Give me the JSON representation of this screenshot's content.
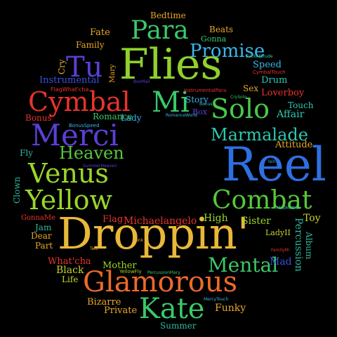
{
  "words": [
    {
      "text": "Droppin'",
      "color": "#e9b83a"
    },
    {
      "text": "Reel",
      "color": "#2f6fe0"
    },
    {
      "text": "Flies",
      "color": "#8fd12c"
    },
    {
      "text": "Glamorous",
      "color": "#ec6a2a"
    },
    {
      "text": "Combat",
      "color": "#57c83a"
    },
    {
      "text": "Yellow",
      "color": "#9bd62a"
    },
    {
      "text": "Venus",
      "color": "#9bd62a"
    },
    {
      "text": "Merci",
      "color": "#5b3fd6"
    },
    {
      "text": "Solo",
      "color": "#48c84a"
    },
    {
      "text": "Kate",
      "color": "#3ac86a"
    },
    {
      "text": "Cymbal",
      "color": "#e8332a"
    },
    {
      "text": "Para",
      "color": "#3ac86a"
    },
    {
      "text": "Mi",
      "color": "#3ac86a"
    },
    {
      "text": "Tu",
      "color": "#5b3fd6"
    },
    {
      "text": "Mental",
      "color": "#3ac86a"
    },
    {
      "text": "Marmalade",
      "color": "#2fc8b0"
    },
    {
      "text": "Promise",
      "color": "#3ab8e8"
    },
    {
      "text": "Heaven",
      "color": "#57c83a"
    },
    {
      "text": "Michaelangelo",
      "color": "#e8332a"
    },
    {
      "text": "Bizarre",
      "color": "#e8a82a"
    },
    {
      "text": "Private",
      "color": "#e8a82a"
    },
    {
      "text": "Funky",
      "color": "#e8a82a"
    },
    {
      "text": "Summer",
      "color": "#2fb8a0"
    },
    {
      "text": "Black",
      "color": "#c8d22a"
    },
    {
      "text": "Life",
      "color": "#c8d22a"
    },
    {
      "text": "What'cha",
      "color": "#e8332a"
    },
    {
      "text": "Mother",
      "color": "#9bd62a"
    },
    {
      "text": "Sister",
      "color": "#9bd62a"
    },
    {
      "text": "High",
      "color": "#9bd62a"
    },
    {
      "text": "Flag",
      "color": "#e8332a"
    },
    {
      "text": "Toy",
      "color": "#c8d22a"
    },
    {
      "text": "Mad",
      "color": "#3a4fe0"
    },
    {
      "text": "Percussion",
      "color": "#2fb8a0"
    },
    {
      "text": "Album",
      "color": "#2fb8a0"
    },
    {
      "text": "Attitude",
      "color": "#e8a82a"
    },
    {
      "text": "Affair",
      "color": "#2fc8b0"
    },
    {
      "text": "Touch",
      "color": "#2fc8b0"
    },
    {
      "text": "Loverboy",
      "color": "#e8332a"
    },
    {
      "text": "Drum",
      "color": "#2fc8b0"
    },
    {
      "text": "Speed",
      "color": "#3ab8e8"
    },
    {
      "text": "Sex",
      "color": "#e8a82a"
    },
    {
      "text": "Story",
      "color": "#3ab8e8"
    },
    {
      "text": "Box",
      "color": "#5b3fd6"
    },
    {
      "text": "Lady",
      "color": "#3ab8e8"
    },
    {
      "text": "Romance",
      "color": "#3ac86a"
    },
    {
      "text": "Bonus",
      "color": "#e8332a"
    },
    {
      "text": "Fly",
      "color": "#2fb8a0"
    },
    {
      "text": "Clown",
      "color": "#2fb8a0"
    },
    {
      "text": "Jam",
      "color": "#2fb8a0"
    },
    {
      "text": "Dear",
      "color": "#e8a82a"
    },
    {
      "text": "Part",
      "color": "#e8a82a"
    },
    {
      "text": "GonnaMe",
      "color": "#e8332a"
    },
    {
      "text": "Instrumental",
      "color": "#3a4fe0"
    },
    {
      "text": "Cry",
      "color": "#e8a82a"
    },
    {
      "text": "Fate",
      "color": "#e8a82a"
    },
    {
      "text": "Family",
      "color": "#e8a82a"
    },
    {
      "text": "Bedtime",
      "color": "#e8a82a"
    },
    {
      "text": "Beats",
      "color": "#e8a82a"
    },
    {
      "text": "Gonna",
      "color": "#3ac86a"
    },
    {
      "text": "Mary",
      "color": "#e8a82a"
    },
    {
      "text": "FlagWhat'cha",
      "color": "#e8332a"
    },
    {
      "text": "LadyII",
      "color": "#c8d22a"
    },
    {
      "text": "InstrumentalPara",
      "color": "#e8332a"
    },
    {
      "text": "CymbalTouch",
      "color": "#e8332a"
    },
    {
      "text": "BackAttitude",
      "color": "#2fc8b0"
    },
    {
      "text": "BonusSpeed",
      "color": "#3ab8e8"
    },
    {
      "text": "BoxMail",
      "color": "#5b3fd6"
    },
    {
      "text": "RomanceWorld",
      "color": "#3ab8e8"
    },
    {
      "text": "SummerHeaven",
      "color": "#5b3fd6"
    },
    {
      "text": "Isin",
      "color": "#3ab8e8"
    },
    {
      "text": "MadMother",
      "color": "#2fc8b0"
    },
    {
      "text": "FamilyMi",
      "color": "#e8332a"
    },
    {
      "text": "YellowFly",
      "color": "#9bd62a"
    },
    {
      "text": "PercussionMary",
      "color": "#3ac86a"
    },
    {
      "text": "MercyTouch",
      "color": "#3ab8e8"
    },
    {
      "text": "CrySolo",
      "color": "#3ac86a"
    },
    {
      "text": "Two",
      "color": "#e8a82a"
    },
    {
      "text": "Funk",
      "color": "#e8a82a"
    },
    {
      "text": "Bonus",
      "color": "#3ab8e8"
    }
  ]
}
